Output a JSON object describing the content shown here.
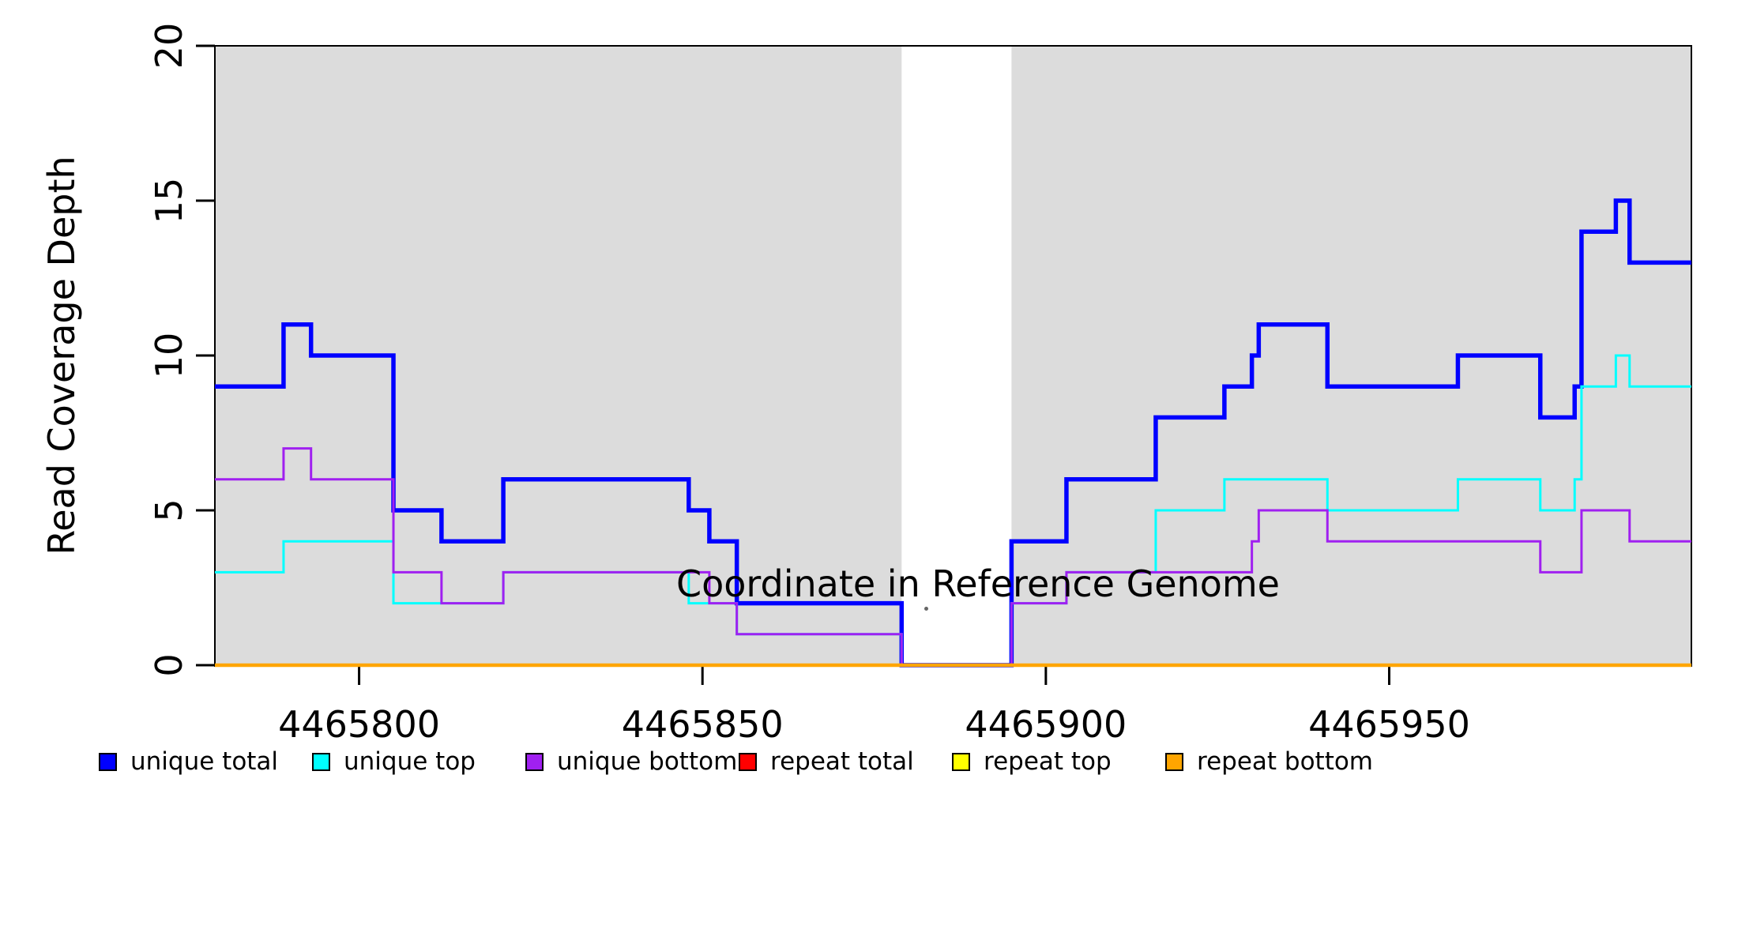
{
  "y_axis": {
    "label": "Read Coverage Depth",
    "ticks": [
      0,
      5,
      10,
      15,
      20
    ]
  },
  "x_axis": {
    "label": "Coordinate in Reference Genome",
    "ticks": [
      4465800,
      4465850,
      4465900,
      4465950
    ]
  },
  "colors": {
    "plot_background": "#DCDCDC",
    "page_background": "#FFFFFF",
    "axis": "#000000",
    "unique_total": "#0000FF",
    "unique_top": "#00FFFF",
    "unique_bottom": "#A020F0",
    "repeat_total": "#FF0000",
    "repeat_top": "#FFFF00",
    "repeat_bottom": "#FFA500"
  },
  "legend": {
    "items": [
      {
        "label": "unique total",
        "color": "#0000FF"
      },
      {
        "label": "unique top",
        "color": "#00FFFF"
      },
      {
        "label": "unique bottom",
        "color": "#A020F0"
      },
      {
        "label": "repeat total",
        "color": "#FF0000"
      },
      {
        "label": "repeat top",
        "color": "#FFFF00"
      },
      {
        "label": "repeat bottom",
        "color": "#FFA500"
      }
    ]
  },
  "chart_data": {
    "type": "line",
    "subtype": "step-coverage",
    "title": "",
    "xlabel": "Coordinate in Reference Genome",
    "ylabel": "Read Coverage Depth",
    "xlim": [
      4465779,
      4465994
    ],
    "ylim": [
      0,
      20
    ],
    "x_ticks": [
      4465800,
      4465850,
      4465900,
      4465950
    ],
    "y_ticks": [
      0,
      5,
      10,
      15,
      20
    ],
    "grid": false,
    "legend_position": "bottom",
    "background_regions": [
      {
        "x0": 4465779,
        "x1": 4465879,
        "color": "#DCDCDC"
      },
      {
        "x0": 4465895,
        "x1": 4465994,
        "color": "#DCDCDC"
      }
    ],
    "gap_region": {
      "x0": 4465879,
      "x1": 4465895,
      "note": "white band, zero coverage"
    },
    "series": [
      {
        "name": "unique total",
        "color": "#0000FF",
        "line_width": 5.5,
        "points": [
          [
            4465779,
            9
          ],
          [
            4465789,
            11
          ],
          [
            4465793,
            10
          ],
          [
            4465805,
            5
          ],
          [
            4465812,
            4
          ],
          [
            4465821,
            6
          ],
          [
            4465848,
            5
          ],
          [
            4465851,
            4
          ],
          [
            4465855,
            2
          ],
          [
            4465879,
            0
          ],
          [
            4465895,
            4
          ],
          [
            4465903,
            6
          ],
          [
            4465916,
            8
          ],
          [
            4465926,
            9
          ],
          [
            4465930,
            10
          ],
          [
            4465931,
            11
          ],
          [
            4465941,
            9
          ],
          [
            4465960,
            10
          ],
          [
            4465972,
            8
          ],
          [
            4465977,
            9
          ],
          [
            4465978,
            14
          ],
          [
            4465983,
            15
          ],
          [
            4465985,
            13
          ]
        ]
      },
      {
        "name": "unique top",
        "color": "#00FFFF",
        "line_width": 3,
        "points": [
          [
            4465779,
            3
          ],
          [
            4465789,
            4
          ],
          [
            4465805,
            2
          ],
          [
            4465821,
            3
          ],
          [
            4465848,
            2
          ],
          [
            4465855,
            1
          ],
          [
            4465879,
            0
          ],
          [
            4465895,
            2
          ],
          [
            4465903,
            3
          ],
          [
            4465916,
            5
          ],
          [
            4465926,
            6
          ],
          [
            4465941,
            5
          ],
          [
            4465960,
            6
          ],
          [
            4465972,
            5
          ],
          [
            4465977,
            6
          ],
          [
            4465978,
            9
          ],
          [
            4465983,
            10
          ],
          [
            4465985,
            9
          ]
        ]
      },
      {
        "name": "unique bottom",
        "color": "#A020F0",
        "line_width": 3,
        "points": [
          [
            4465779,
            6
          ],
          [
            4465789,
            7
          ],
          [
            4465793,
            6
          ],
          [
            4465805,
            3
          ],
          [
            4465812,
            2
          ],
          [
            4465821,
            3
          ],
          [
            4465851,
            2
          ],
          [
            4465855,
            1
          ],
          [
            4465879,
            0
          ],
          [
            4465895,
            2
          ],
          [
            4465903,
            3
          ],
          [
            4465930,
            4
          ],
          [
            4465931,
            5
          ],
          [
            4465941,
            4
          ],
          [
            4465972,
            3
          ],
          [
            4465978,
            5
          ],
          [
            4465985,
            4
          ]
        ]
      },
      {
        "name": "repeat total",
        "color": "#FF0000",
        "line_width": 3,
        "points": [
          [
            4465779,
            0
          ]
        ]
      },
      {
        "name": "repeat top",
        "color": "#FFFF00",
        "line_width": 3,
        "points": [
          [
            4465779,
            0
          ]
        ]
      },
      {
        "name": "repeat bottom",
        "color": "#FFA500",
        "line_width": 4.5,
        "points": [
          [
            4465779,
            0
          ]
        ]
      }
    ]
  }
}
